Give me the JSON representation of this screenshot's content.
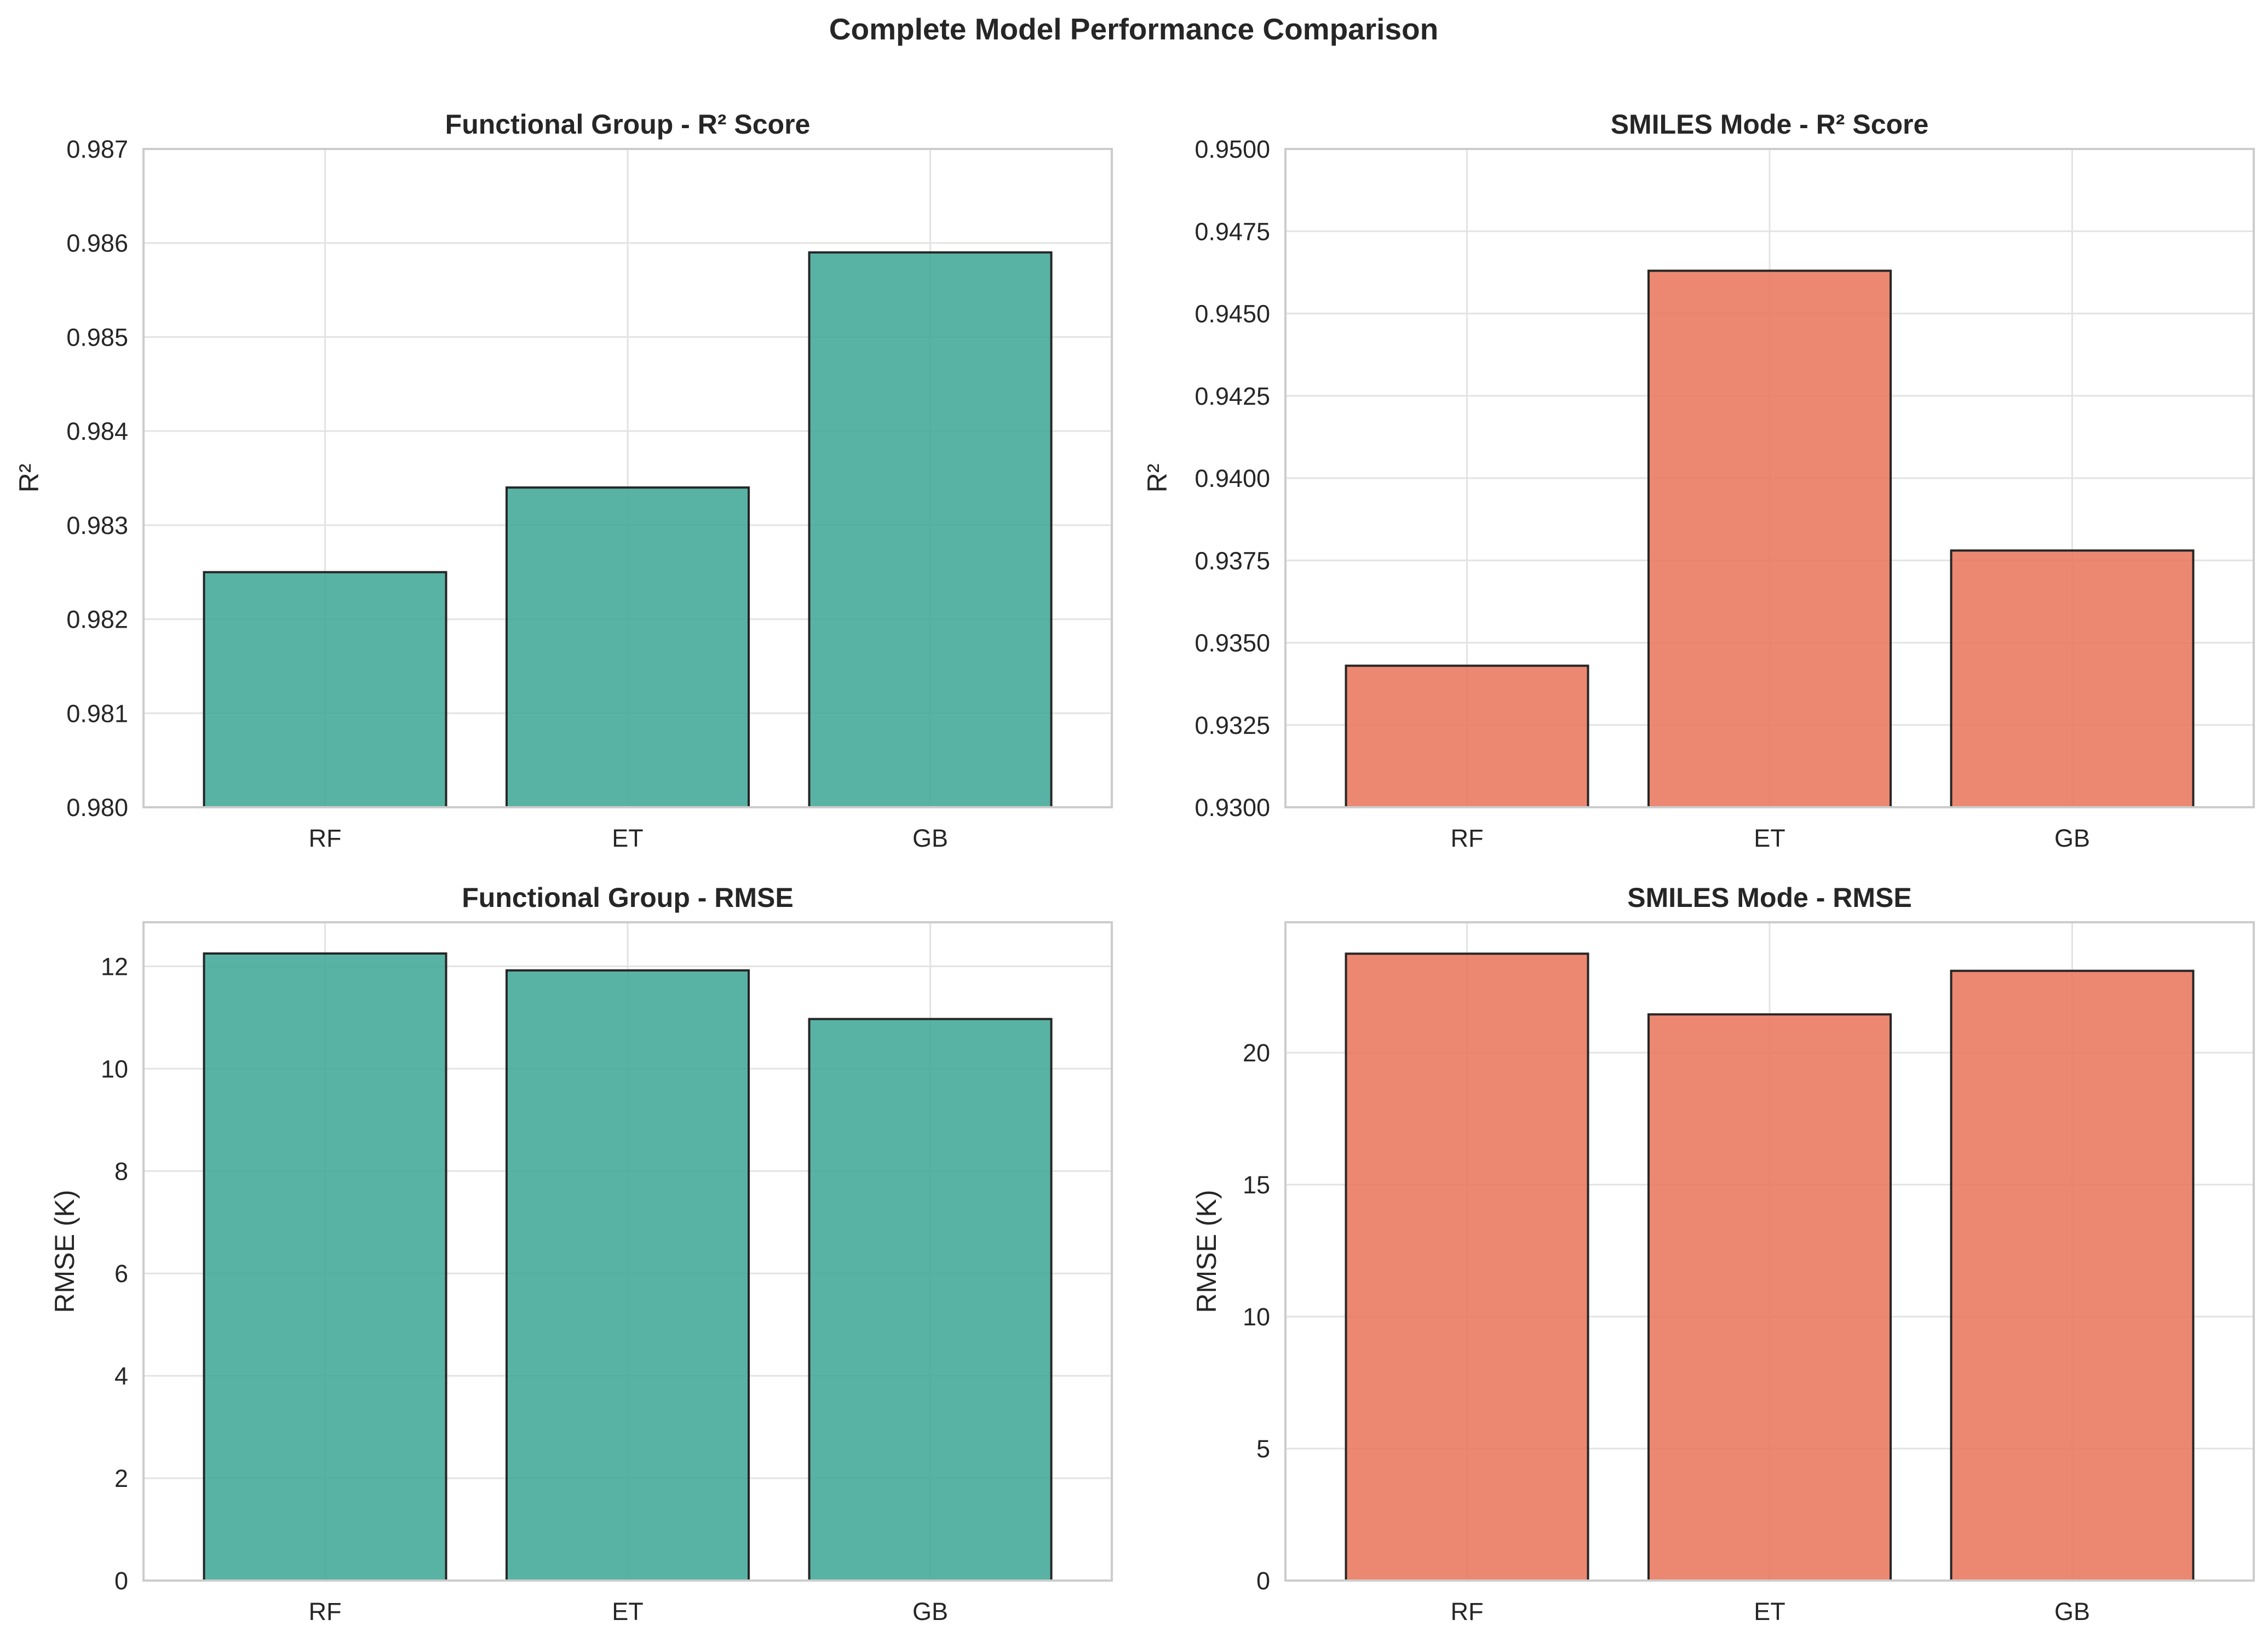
{
  "title": "Complete Model Performance Comparison",
  "chart_data": [
    {
      "type": "bar",
      "title": "Functional Group - R² Score",
      "categories": [
        "RF",
        "ET",
        "GB"
      ],
      "values": [
        0.9825,
        0.9834,
        0.9859
      ],
      "xlabel": "",
      "ylabel": "R²",
      "ylim": [
        0.98,
        0.987
      ],
      "yticks": [
        0.98,
        0.981,
        0.982,
        0.983,
        0.984,
        0.985,
        0.986,
        0.987
      ],
      "ytick_labels": [
        "0.980",
        "0.981",
        "0.982",
        "0.983",
        "0.984",
        "0.985",
        "0.986",
        "0.987"
      ],
      "color": "#42a899",
      "grid": true
    },
    {
      "type": "bar",
      "title": "SMILES Mode - R² Score",
      "categories": [
        "RF",
        "ET",
        "GB"
      ],
      "values": [
        0.9343,
        0.9463,
        0.9378
      ],
      "xlabel": "",
      "ylabel": "R²",
      "ylim": [
        0.93,
        0.95
      ],
      "yticks": [
        0.93,
        0.9325,
        0.935,
        0.9375,
        0.94,
        0.9425,
        0.945,
        0.9475,
        0.95
      ],
      "ytick_labels": [
        "0.9300",
        "0.9325",
        "0.9350",
        "0.9375",
        "0.9400",
        "0.9425",
        "0.9450",
        "0.9475",
        "0.9500"
      ],
      "color": "#e9785d",
      "grid": true
    },
    {
      "type": "bar",
      "title": "Functional Group - RMSE",
      "categories": [
        "RF",
        "ET",
        "GB"
      ],
      "values": [
        12.25,
        11.92,
        10.97
      ],
      "xlabel": "",
      "ylabel": "RMSE (K)",
      "ylim": [
        0,
        12.86
      ],
      "yticks": [
        0,
        2,
        4,
        6,
        8,
        10,
        12
      ],
      "ytick_labels": [
        "0",
        "2",
        "4",
        "6",
        "8",
        "10",
        "12"
      ],
      "color": "#42a899",
      "grid": true
    },
    {
      "type": "bar",
      "title": "SMILES Mode - RMSE",
      "categories": [
        "RF",
        "ET",
        "GB"
      ],
      "values": [
        23.75,
        21.45,
        23.1
      ],
      "xlabel": "",
      "ylabel": "RMSE (K)",
      "ylim": [
        0,
        24.94
      ],
      "yticks": [
        0,
        5,
        10,
        15,
        20
      ],
      "ytick_labels": [
        "0",
        "5",
        "10",
        "15",
        "20"
      ],
      "color": "#e9785d",
      "grid": true
    }
  ]
}
